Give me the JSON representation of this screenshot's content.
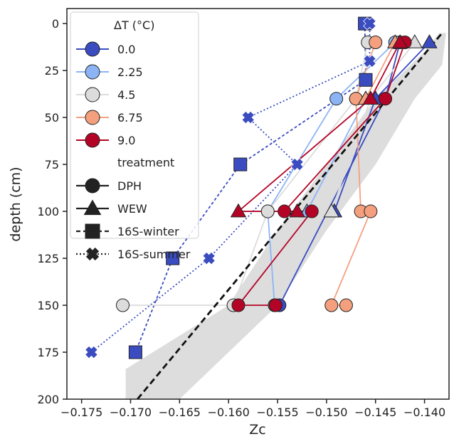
{
  "chart_data": {
    "type": "scatter",
    "xlabel": "Zc",
    "ylabel": "depth (cm)",
    "xlim": [
      -0.1765,
      -0.1375
    ],
    "ylim": [
      200,
      -8
    ],
    "y_inverted": true,
    "x_ticks": [
      -0.175,
      -0.17,
      -0.165,
      -0.16,
      -0.155,
      -0.15,
      -0.145,
      -0.14
    ],
    "x_tick_labels": [
      "−0.175",
      "−0.170",
      "−0.165",
      "−0.160",
      "−0.155",
      "−0.150",
      "−0.145",
      "−0.140"
    ],
    "y_ticks": [
      0,
      25,
      50,
      75,
      100,
      125,
      150,
      175,
      200
    ],
    "y_tick_labels": [
      "0",
      "25",
      "50",
      "75",
      "100",
      "125",
      "150",
      "175",
      "200"
    ],
    "grid": false,
    "legend": {
      "placement": "top-left",
      "title_temp": "ΔT (°C)",
      "temps": [
        {
          "label": "0.0",
          "color": "#3a4cc0"
        },
        {
          "label": "2.25",
          "color": "#8cb4f5"
        },
        {
          "label": "4.5",
          "color": "#dcdcdc"
        },
        {
          "label": "6.75",
          "color": "#f4a07e"
        },
        {
          "label": "9.0",
          "color": "#b40426"
        }
      ],
      "title_treatment": "treatment",
      "treatments": [
        {
          "label": "DPH",
          "marker": "circle",
          "line": "solid"
        },
        {
          "label": "WEW",
          "marker": "triangle",
          "line": "solid"
        },
        {
          "label": "16S-winter",
          "marker": "square",
          "line": "dashed"
        },
        {
          "label": "16S-summer",
          "marker": "x",
          "line": "dotted"
        }
      ]
    },
    "regression": {
      "line": [
        [
          -0.1693,
          200
        ],
        [
          -0.1382,
          5
        ]
      ],
      "band_upper": [
        [
          -0.1705,
          184
        ],
        [
          -0.16,
          150
        ],
        [
          -0.155,
          110
        ],
        [
          -0.15,
          75
        ],
        [
          -0.145,
          40
        ],
        [
          -0.14,
          15
        ],
        [
          -0.1385,
          5
        ]
      ],
      "band_lower": [
        [
          -0.1705,
          200
        ],
        [
          -0.165,
          200
        ],
        [
          -0.155,
          150
        ],
        [
          -0.15,
          110
        ],
        [
          -0.145,
          75
        ],
        [
          -0.141,
          40
        ],
        [
          -0.1382,
          22
        ],
        [
          -0.1378,
          5
        ]
      ]
    },
    "series": [
      {
        "temp": "0.0",
        "treatment": "16S-winter",
        "points": [
          [
            -0.1461,
            0
          ],
          [
            -0.146,
            30
          ],
          [
            -0.1588,
            75
          ],
          [
            -0.1657,
            125
          ],
          [
            -0.1695,
            175
          ]
        ]
      },
      {
        "temp": "0.0",
        "treatment": "16S-summer",
        "points": [
          [
            -0.1456,
            0
          ],
          [
            -0.1456,
            20
          ],
          [
            -0.158,
            50
          ],
          [
            -0.153,
            75
          ],
          [
            -0.162,
            125
          ],
          [
            -0.174,
            175
          ]
        ]
      },
      {
        "temp": "0.0",
        "treatment": "DPH",
        "points": [
          [
            -0.1425,
            10
          ],
          [
            -0.144,
            40
          ],
          [
            -0.1548,
            150
          ]
        ]
      },
      {
        "temp": "0.0",
        "treatment": "WEW",
        "points": [
          [
            -0.1395,
            10
          ],
          [
            -0.145,
            40
          ],
          [
            -0.1492,
            100
          ]
        ]
      },
      {
        "temp": "2.25",
        "treatment": "DPH",
        "points": [
          [
            -0.143,
            10
          ],
          [
            -0.149,
            40
          ],
          [
            -0.156,
            100
          ],
          [
            -0.1553,
            150
          ]
        ]
      },
      {
        "temp": "2.25",
        "treatment": "WEW",
        "points": [
          [
            -0.146,
            40
          ],
          [
            -0.152,
            100
          ]
        ]
      },
      {
        "temp": "4.5",
        "treatment": "DPH",
        "points": [
          [
            -0.1458,
            10
          ],
          [
            -0.147,
            40
          ],
          [
            -0.156,
            100
          ],
          [
            -0.1595,
            150
          ],
          [
            -0.1708,
            150
          ]
        ]
      },
      {
        "temp": "4.5",
        "treatment": "WEW",
        "points": [
          [
            -0.141,
            10
          ],
          [
            -0.1455,
            40
          ],
          [
            -0.1495,
            100
          ]
        ]
      },
      {
        "temp": "6.75",
        "treatment": "DPH",
        "points": [
          [
            -0.145,
            10
          ],
          [
            -0.147,
            40
          ],
          [
            -0.1465,
            100
          ],
          [
            -0.1455,
            100
          ],
          [
            -0.1495,
            150
          ],
          [
            -0.148,
            150
          ]
        ]
      },
      {
        "temp": "6.75",
        "treatment": "WEW",
        "points": [
          [
            -0.143,
            10
          ],
          [
            -0.146,
            40
          ]
        ]
      },
      {
        "temp": "9.0",
        "treatment": "DPH",
        "points": [
          [
            -0.142,
            10
          ],
          [
            -0.144,
            40
          ],
          [
            -0.1543,
            100
          ],
          [
            -0.1515,
            100
          ],
          [
            -0.159,
            150
          ],
          [
            -0.1552,
            150
          ]
        ]
      },
      {
        "temp": "9.0",
        "treatment": "WEW",
        "points": [
          [
            -0.1425,
            10
          ],
          [
            -0.1455,
            40
          ],
          [
            -0.159,
            100
          ],
          [
            -0.153,
            100
          ]
        ]
      }
    ]
  }
}
